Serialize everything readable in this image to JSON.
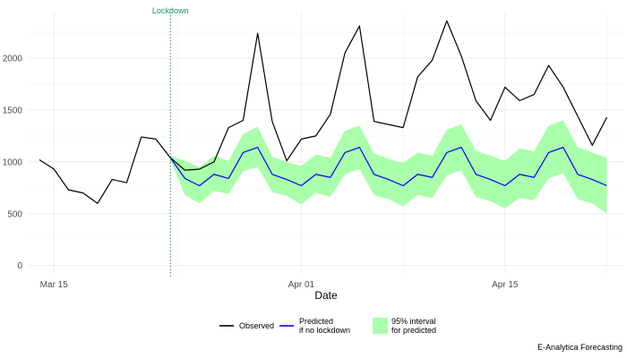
{
  "chart_data": {
    "type": "line",
    "xlabel": "Date",
    "ylabel": "",
    "x_start": "2020-03-14",
    "x_tick_labels": [
      {
        "date": "2020-03-15",
        "label": "Mar 15"
      },
      {
        "date": "2020-04-01",
        "label": "Apr 01"
      },
      {
        "date": "2020-04-15",
        "label": "Apr 15"
      }
    ],
    "y_ticks": [
      0,
      500,
      1000,
      1500,
      2000
    ],
    "ylim": [
      -80,
      2440
    ],
    "grid": true,
    "series": [
      {
        "name": "Observed",
        "color": "#000000",
        "values": [
          1020,
          930,
          730,
          700,
          600,
          830,
          800,
          1240,
          1220,
          1040,
          920,
          930,
          1000,
          1330,
          1400,
          2240,
          1390,
          1010,
          1220,
          1250,
          1460,
          2050,
          2310,
          1390,
          1360,
          1330,
          1820,
          1980,
          2360,
          2020,
          1590,
          1400,
          1720,
          1590,
          1650,
          1930,
          1720,
          1440,
          1160,
          1430
        ]
      },
      {
        "name": "Predicted\nif no lockdown",
        "color": "#0000ff",
        "start_index": 9,
        "values": [
          1040,
          840,
          770,
          880,
          840,
          1090,
          1140,
          880,
          830,
          770,
          880,
          850,
          1090,
          1140,
          880,
          830,
          770,
          880,
          850,
          1090,
          1140,
          880,
          830,
          770,
          880,
          850,
          1090,
          1140,
          880,
          830,
          770
        ]
      },
      {
        "name": "95% interval\nfor predicted",
        "color": "#aaffaa",
        "start_index": 9,
        "lower": [
          1020,
          680,
          600,
          720,
          690,
          910,
          950,
          710,
          670,
          590,
          700,
          660,
          880,
          930,
          680,
          640,
          570,
          680,
          650,
          870,
          920,
          660,
          620,
          550,
          650,
          630,
          840,
          890,
          640,
          600,
          500
        ],
        "upper": [
          1060,
          1010,
          950,
          1060,
          1010,
          1270,
          1340,
          1050,
          1000,
          960,
          1070,
          1040,
          1300,
          1350,
          1080,
          1030,
          990,
          1090,
          1060,
          1310,
          1360,
          1110,
          1060,
          1010,
          1130,
          1100,
          1350,
          1400,
          1140,
          1090,
          1040
        ]
      }
    ],
    "annotations": [
      {
        "label": "Lockdown",
        "index": 9,
        "color": "#1a8f50"
      }
    ],
    "legend": {
      "placement": "bottom",
      "items": [
        {
          "label": "Observed",
          "color": "#000000",
          "kind": "line"
        },
        {
          "label": "Predicted\nif no lockdown",
          "color": "#0000ff",
          "kind": "line"
        },
        {
          "label": "95% interval\nfor predicted",
          "color": "#aaffaa",
          "kind": "fill"
        }
      ]
    },
    "caption": "E-Analytica Forecasting"
  }
}
